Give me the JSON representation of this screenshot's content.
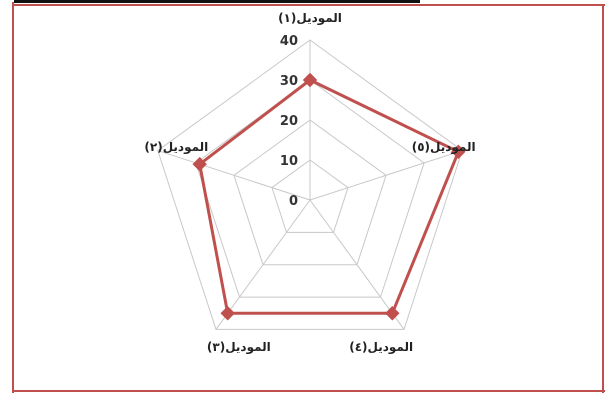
{
  "colors": {
    "frame_accent": "#c0504d",
    "series": "#c0504d",
    "grid": "#c8c8c8"
  },
  "chart_data": {
    "type": "radar",
    "categories": [
      "الموديل(١)",
      "الموديل(٥)",
      "الموديل(٤)",
      "الموديل(٣)",
      "الموديل(٢)"
    ],
    "series": [
      {
        "values": [
          30,
          39,
          35,
          35,
          29
        ]
      }
    ],
    "rlim": [
      0,
      40
    ],
    "ticks": [
      0,
      10,
      20,
      30,
      40
    ],
    "grid": true,
    "legend": "none"
  }
}
